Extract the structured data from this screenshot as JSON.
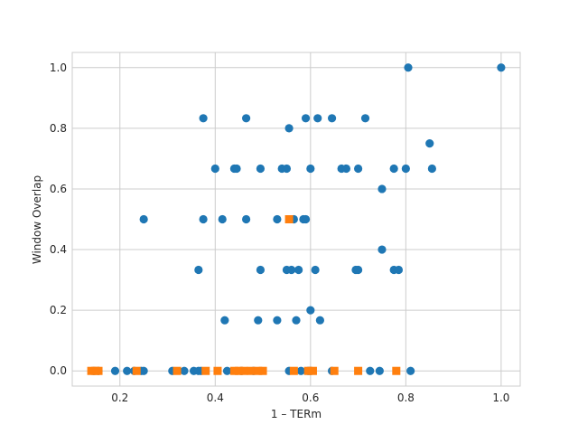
{
  "chart_data": {
    "type": "scatter",
    "title": "",
    "xlabel": "1 – TERm",
    "ylabel": "Window Overlap",
    "xlim": [
      0.1,
      1.04
    ],
    "ylim": [
      -0.05,
      1.05
    ],
    "xticks": [
      0.2,
      0.4,
      0.6,
      0.8,
      1.0
    ],
    "xtick_labels": [
      "0.2",
      "0.4",
      "0.6",
      "0.8",
      "1.0"
    ],
    "yticks": [
      0.0,
      0.2,
      0.4,
      0.6,
      0.8,
      1.0
    ],
    "ytick_labels": [
      "0.0",
      "0.2",
      "0.4",
      "0.6",
      "0.8",
      "1.0"
    ],
    "grid": true,
    "legend": "none",
    "series": [
      {
        "color": "#1f77b4",
        "marker": "circle",
        "points": [
          [
            0.145,
            0.0
          ],
          [
            0.155,
            0.0
          ],
          [
            0.19,
            0.0
          ],
          [
            0.215,
            0.0
          ],
          [
            0.23,
            0.0
          ],
          [
            0.245,
            0.0
          ],
          [
            0.25,
            0.0
          ],
          [
            0.25,
            0.5
          ],
          [
            0.31,
            0.0
          ],
          [
            0.335,
            0.0
          ],
          [
            0.355,
            0.0
          ],
          [
            0.365,
            0.0
          ],
          [
            0.365,
            0.333
          ],
          [
            0.37,
            0.0
          ],
          [
            0.375,
            0.833
          ],
          [
            0.375,
            0.5
          ],
          [
            0.4,
            0.667
          ],
          [
            0.415,
            0.5
          ],
          [
            0.42,
            0.167
          ],
          [
            0.425,
            0.0
          ],
          [
            0.44,
            0.667
          ],
          [
            0.445,
            0.667
          ],
          [
            0.455,
            0.0
          ],
          [
            0.465,
            0.833
          ],
          [
            0.465,
            0.5
          ],
          [
            0.48,
            0.0
          ],
          [
            0.49,
            0.167
          ],
          [
            0.495,
            0.333
          ],
          [
            0.495,
            0.667
          ],
          [
            0.53,
            0.5
          ],
          [
            0.53,
            0.167
          ],
          [
            0.54,
            0.667
          ],
          [
            0.55,
            0.667
          ],
          [
            0.55,
            0.333
          ],
          [
            0.555,
            0.0
          ],
          [
            0.555,
            0.8
          ],
          [
            0.56,
            0.333
          ],
          [
            0.565,
            0.5
          ],
          [
            0.57,
            0.167
          ],
          [
            0.575,
            0.333
          ],
          [
            0.58,
            0.0
          ],
          [
            0.585,
            0.5
          ],
          [
            0.59,
            0.833
          ],
          [
            0.59,
            0.5
          ],
          [
            0.595,
            0.0
          ],
          [
            0.6,
            0.2
          ],
          [
            0.6,
            0.667
          ],
          [
            0.6,
            0.0
          ],
          [
            0.61,
            0.333
          ],
          [
            0.615,
            0.833
          ],
          [
            0.62,
            0.167
          ],
          [
            0.645,
            0.833
          ],
          [
            0.645,
            0.0
          ],
          [
            0.665,
            0.667
          ],
          [
            0.675,
            0.667
          ],
          [
            0.695,
            0.333
          ],
          [
            0.7,
            0.333
          ],
          [
            0.7,
            0.667
          ],
          [
            0.715,
            0.833
          ],
          [
            0.725,
            0.0
          ],
          [
            0.745,
            0.0
          ],
          [
            0.75,
            0.6
          ],
          [
            0.75,
            0.4
          ],
          [
            0.775,
            0.333
          ],
          [
            0.775,
            0.667
          ],
          [
            0.785,
            0.333
          ],
          [
            0.8,
            0.667
          ],
          [
            0.805,
            1.0
          ],
          [
            0.81,
            0.0
          ],
          [
            0.85,
            0.75
          ],
          [
            0.855,
            0.667
          ],
          [
            1.0,
            1.0
          ]
        ]
      },
      {
        "color": "#ff7f0e",
        "marker": "square",
        "points": [
          [
            0.14,
            0.0
          ],
          [
            0.148,
            0.0
          ],
          [
            0.155,
            0.0
          ],
          [
            0.235,
            0.0
          ],
          [
            0.32,
            0.0
          ],
          [
            0.38,
            0.0
          ],
          [
            0.405,
            0.0
          ],
          [
            0.44,
            0.0
          ],
          [
            0.45,
            0.0
          ],
          [
            0.46,
            0.0
          ],
          [
            0.475,
            0.0
          ],
          [
            0.49,
            0.0
          ],
          [
            0.5,
            0.0
          ],
          [
            0.555,
            0.5
          ],
          [
            0.565,
            0.0
          ],
          [
            0.595,
            0.0
          ],
          [
            0.605,
            0.0
          ],
          [
            0.65,
            0.0
          ],
          [
            0.7,
            0.0
          ],
          [
            0.78,
            0.0
          ]
        ]
      }
    ]
  }
}
